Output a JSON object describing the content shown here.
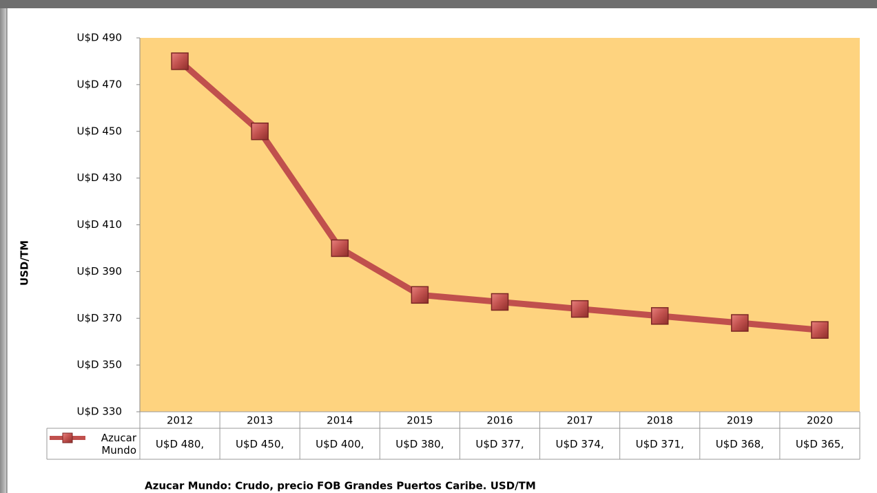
{
  "chart_data": {
    "type": "line",
    "y_label": "USD/TM",
    "footnote": "Azucar Mundo: Crudo, precio FOB Grandes Puertos Caribe. USD/TM",
    "categories": [
      "2012",
      "2013",
      "2014",
      "2015",
      "2016",
      "2017",
      "2018",
      "2019",
      "2020"
    ],
    "series": [
      {
        "name": "Azucar Mundo",
        "color": "#c0504d",
        "values": [
          480,
          450,
          400,
          380,
          377,
          374,
          371,
          368,
          365
        ],
        "value_labels": [
          "U$D 480,",
          "U$D 450,",
          "U$D 400,",
          "U$D 380,",
          "U$D 377,",
          "U$D 374,",
          "U$D 371,",
          "U$D 368,",
          "U$D 365,"
        ]
      }
    ],
    "ylim": [
      330,
      490
    ],
    "yticks": [
      {
        "value": 330,
        "label": "U$D 330"
      },
      {
        "value": 350,
        "label": "U$D 350"
      },
      {
        "value": 370,
        "label": "U$D 370"
      },
      {
        "value": 390,
        "label": "U$D 390"
      },
      {
        "value": 410,
        "label": "U$D 410"
      },
      {
        "value": 430,
        "label": "U$D 430"
      },
      {
        "value": 450,
        "label": "U$D 450"
      },
      {
        "value": 470,
        "label": "U$D 470"
      },
      {
        "value": 490,
        "label": "U$D 490"
      }
    ],
    "plot_background": "#fed37f"
  }
}
